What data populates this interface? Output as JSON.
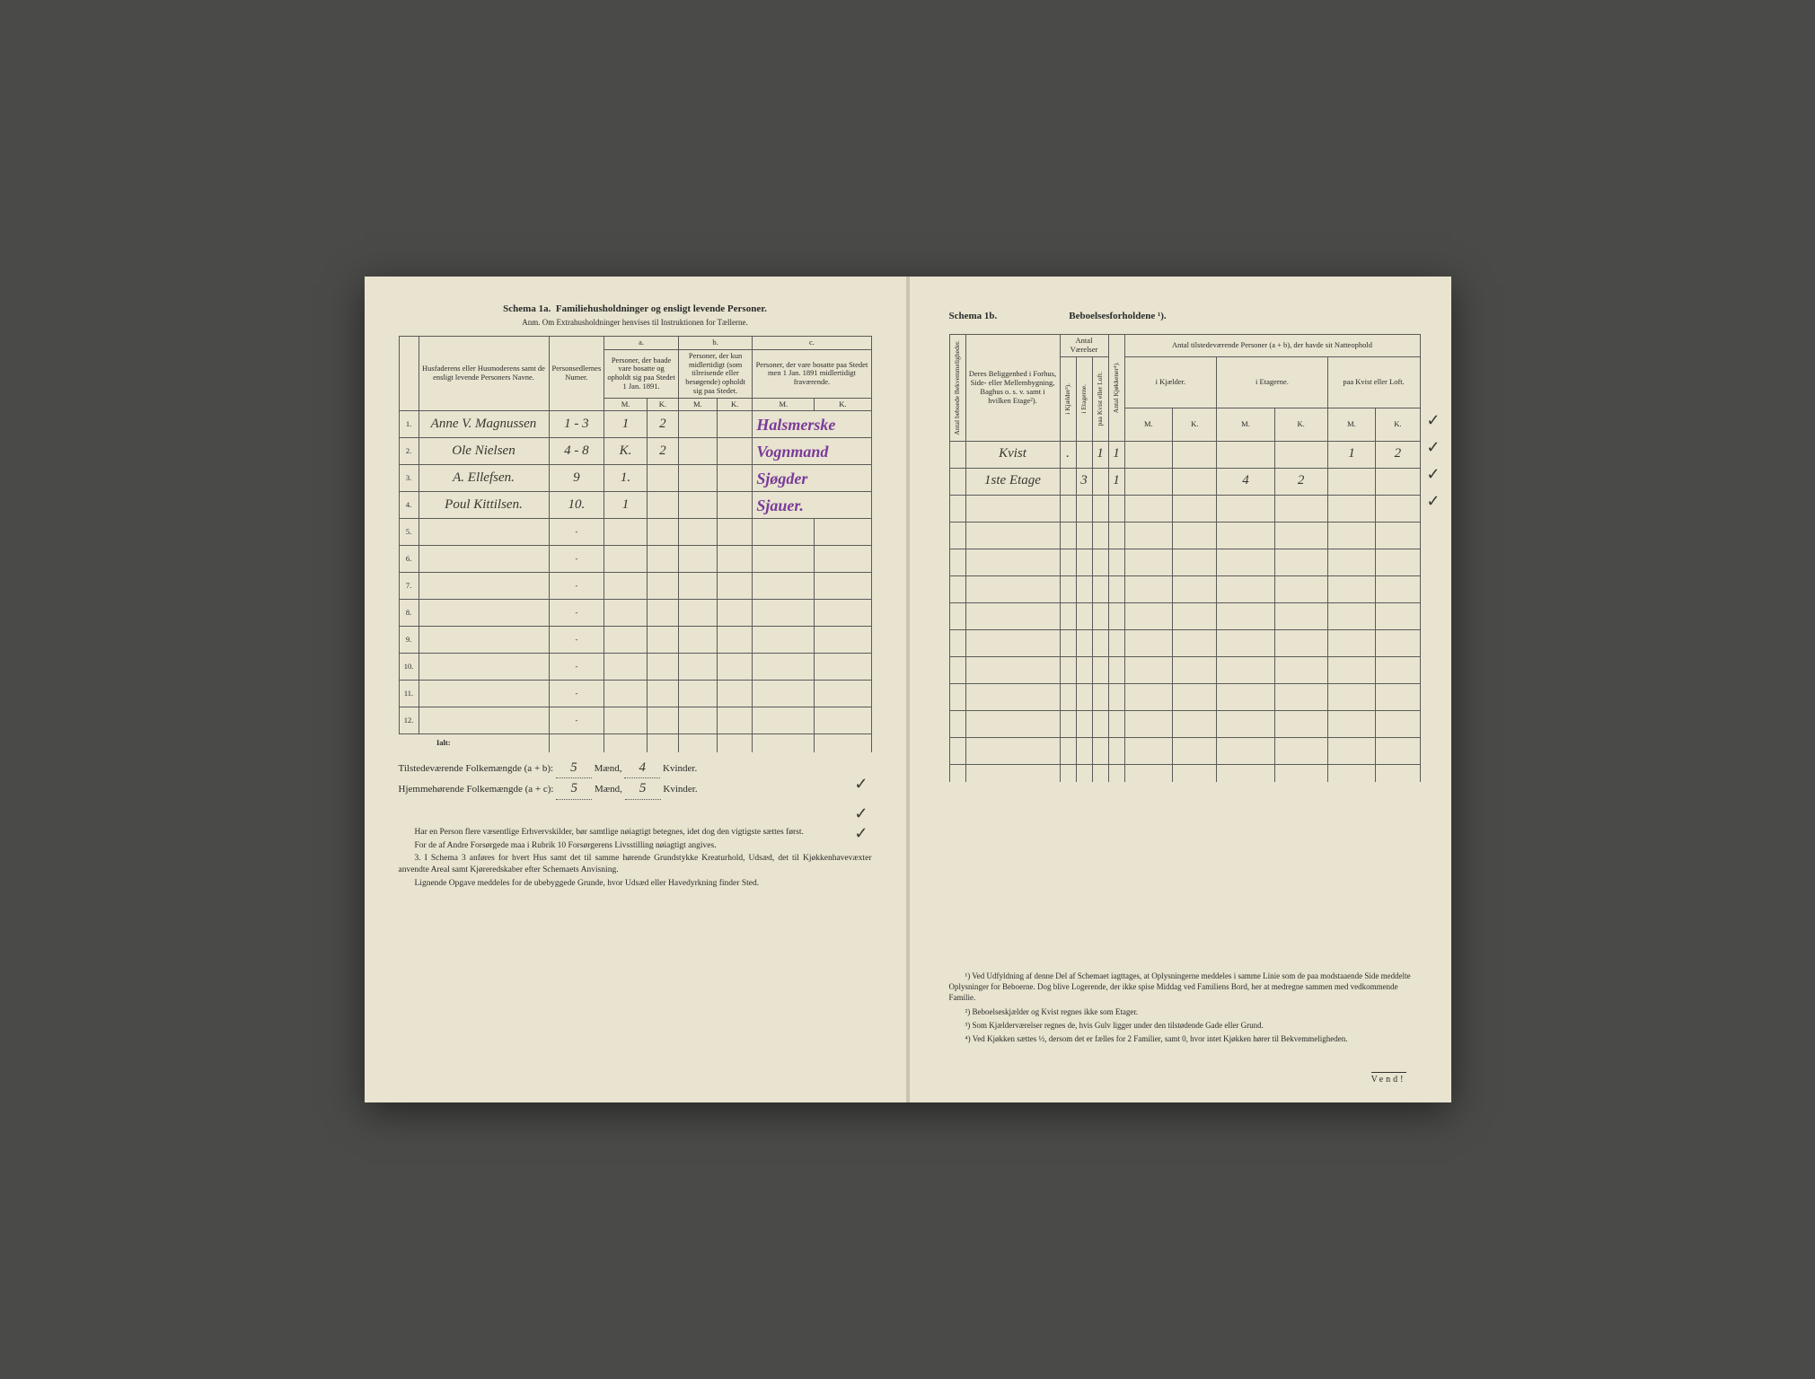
{
  "left": {
    "schema_label": "Schema 1a.",
    "title": "Familiehusholdninger og ensligt levende Personer.",
    "subtitle_prefix": "Anm.",
    "subtitle": "Om Extrahusholdninger henvises til Instruktionen for Tællerne.",
    "headers": {
      "col1": "Husfaderens eller Husmoderens samt de ensligt levende Personers Navne.",
      "col2": "Personsedlernes Numer.",
      "a": "a.",
      "a_text": "Personer, der baade vare bosatte og opholdt sig paa Stedet 1 Jan. 1891.",
      "b": "b.",
      "b_text": "Personer, der kun midlertidigt (som tilreisende eller besøgende) opholdt sig paa Stedet.",
      "c": "c.",
      "c_text": "Personer, der vare bosatte paa Stedet men 1 Jan. 1891 midlertidigt fraværende.",
      "m": "M.",
      "k": "K."
    },
    "rows": [
      {
        "n": "1.",
        "name": "Anne V. Magnussen",
        "num": "1 - 3",
        "am": "1",
        "ak": "2",
        "bm": "",
        "bk": "",
        "cm": "",
        "ck": "",
        "purple": "Halsmerske"
      },
      {
        "n": "2.",
        "name": "Ole Nielsen",
        "num": "4 - 8",
        "am": "K.",
        "ak": "2",
        "bm": "",
        "bk": "",
        "cm": "",
        "ck": "",
        "purple": "Vognmand"
      },
      {
        "n": "3.",
        "name": "A. Ellefsen.",
        "num": "9",
        "am": "1.",
        "ak": "",
        "bm": "",
        "bk": "",
        "cm": "",
        "ck": "",
        "purple": "Sjøgder"
      },
      {
        "n": "4.",
        "name": "Poul Kittilsen.",
        "num": "10.",
        "am": "1",
        "ak": "",
        "bm": "",
        "bk": "",
        "cm": "",
        "ck": "",
        "purple": "Sjauer."
      }
    ],
    "empty_rows": [
      "5.",
      "6.",
      "7.",
      "8.",
      "9.",
      "10.",
      "11.",
      "12."
    ],
    "ialt": "Ialt:",
    "summary1_label": "Tilstedeværende Folkemængde (a + b):",
    "summary1_m": "5",
    "summary1_mlabel": "Mænd,",
    "summary1_k": "4",
    "summary1_klabel": "Kvinder.",
    "summary2_label": "Hjemmehørende Folkemængde (a + c):",
    "summary2_m": "5",
    "summary2_mlabel": "Mænd,",
    "summary2_k": "5",
    "summary2_klabel": "Kvinder.",
    "notes": [
      "Har en Person flere væsentlige Erhvervskilder, bør samtlige nøiagtigt betegnes, idet dog den vigtigste sættes først.",
      "For de af Andre Forsørgede maa i Rubrik 10 Forsørgerens Livsstilling nøiagtigt angives.",
      "3. I Schema 3 anføres for hvert Hus samt det til samme hørende Grundstykke Kreaturhold, Udsæd, det til Kjøkkenhavevæxter anvendte Areal samt Kjøreredskaber efter Schemaets Anvisning.",
      "Lignende Opgave meddeles for de ubebyggede Grunde, hvor Udsæd eller Havedyrkning finder Sted."
    ]
  },
  "right": {
    "schema_label": "Schema 1b.",
    "title": "Beboelsesforholdene ¹).",
    "headers": {
      "col1": "Antal beboede Bekvemmeligheder.",
      "col2": "Deres Beliggenhed i Forhus, Side- eller Mellembygning, Baghus o. s. v. samt i hvilken Etage²).",
      "antal_v": "Antal Værelser",
      "v1": "i Kjælder³).",
      "v2": "i Etagerne.",
      "v3": "paa Kvist eller Loft.",
      "kjok": "Antal Kjøkkener⁴).",
      "natt": "Antal tilstedeværende Personer (a + b), der havde sit Natteophold",
      "n1": "i Kjælder.",
      "n2": "i Etagerne.",
      "n3": "paa Kvist eller Loft.",
      "m": "M.",
      "k": "K."
    },
    "rows": [
      {
        "bekv": "",
        "belig": "Kvist",
        "kj": ".",
        "etg": "",
        "kv": "1",
        "kjok": "1",
        "km": "",
        "kk": "",
        "em": "",
        "ek": "",
        "lm": "1",
        "lk": "2"
      },
      {
        "bekv": "",
        "belig": "1ste Etage",
        "kj": "",
        "etg": "3",
        "kv": "",
        "kjok": "1",
        "km": "",
        "kk": "",
        "em": "4",
        "ek": "2",
        "lm": "",
        "lk": ""
      }
    ],
    "notes": [
      "¹) Ved Udfyldning af denne Del af Schemaet iagttages, at Oplysningerne meddeles i samme Linie som de paa modstaaende Side meddelte Oplysninger for Beboerne. Dog blive Logerende, der ikke spise Middag ved Familiens Bord, her at medregne sammen med vedkommende Familie.",
      "²) Beboelseskjælder og Kvist regnes ikke som Etager.",
      "³) Som Kjælderværelser regnes de, hvis Gulv ligger under den tilstødende Gade eller Grund.",
      "⁴) Ved Kjøkken sættes ½, dersom det er fælles for 2 Familier, samt 0, hvor intet Kjøkken hører til Bekvemmeligheden."
    ],
    "vend": "Vend!"
  }
}
